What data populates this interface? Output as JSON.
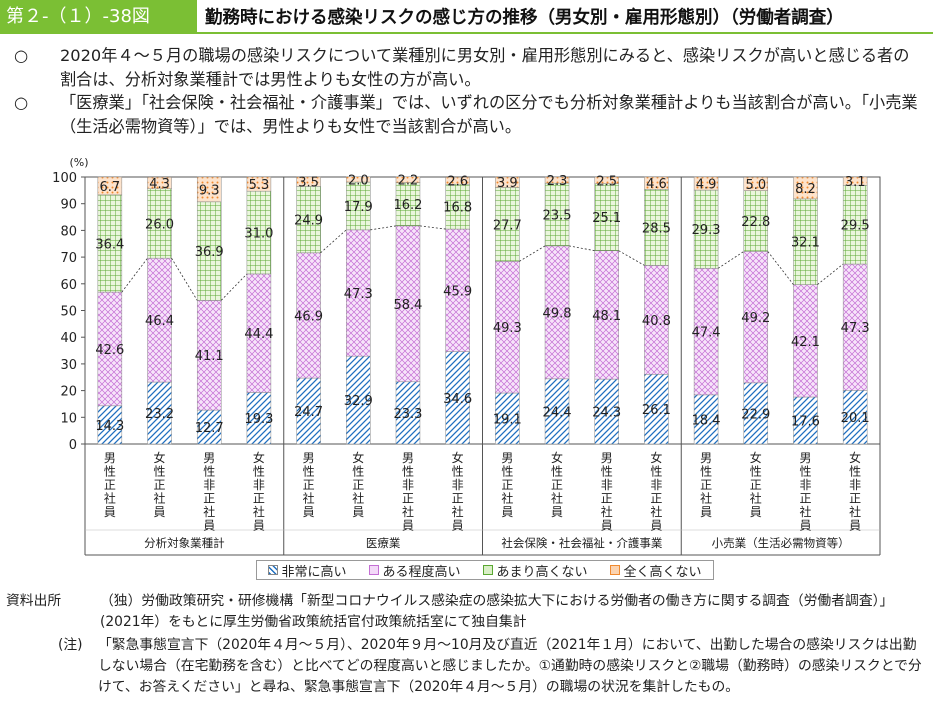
{
  "header": {
    "figure_label": "第２-（１）-38図",
    "title": "勤務時における感染リスクの感じ方の推移（男女別・雇用形態別）（労働者調査）"
  },
  "bullets": [
    {
      "mark": "○",
      "text": "2020年４～５月の職場の感染リスクについて業種別に男女別・雇用形態別にみると、感染リスクが高いと感じる者の割合は、分析対象業種計では男性よりも女性の方が高い。"
    },
    {
      "mark": "○",
      "text": "「医療業」「社会保険・社会福祉・介護事業」では、いずれの区分でも分析対象業種計よりも当該割合が高い。「小売業（生活必需物資等）」では、男性よりも女性で当該割合が高い。"
    }
  ],
  "chart_data": {
    "type": "bar",
    "stacked": true,
    "unit_label": "(%)",
    "ylim": [
      0,
      100
    ],
    "yticks": [
      0,
      10,
      20,
      30,
      40,
      50,
      60,
      70,
      80,
      90,
      100
    ],
    "groups": [
      {
        "name": "分析対象業種計",
        "categories": [
          "男性正社員",
          "女性正社員",
          "男性非正社員",
          "女性非正社員"
        ]
      },
      {
        "name": "医療業",
        "categories": [
          "男性正社員",
          "女性正社員",
          "男性非正社員",
          "女性非正社員"
        ]
      },
      {
        "name": "社会保険・社会福祉・介護事業",
        "categories": [
          "男性正社員",
          "女性正社員",
          "男性非正社員",
          "女性非正社員"
        ]
      },
      {
        "name": "小売業（生活必需物資等）",
        "categories": [
          "男性正社員",
          "女性正社員",
          "男性非正社員",
          "女性非正社員"
        ]
      }
    ],
    "category_labels": [
      "男性正社員",
      "女性正社員",
      "男性非正社員",
      "女性非正社員"
    ],
    "series": [
      {
        "name": "非常に高い",
        "color": "#1f6fc0",
        "values": [
          14.3,
          23.2,
          12.7,
          19.3,
          24.7,
          32.9,
          23.3,
          34.6,
          19.1,
          24.4,
          24.3,
          26.1,
          18.4,
          22.9,
          17.6,
          20.1
        ]
      },
      {
        "name": "ある程度高い",
        "color": "#b04fc4",
        "values": [
          42.6,
          46.4,
          41.1,
          44.4,
          46.9,
          47.3,
          58.4,
          45.9,
          49.3,
          49.8,
          48.1,
          40.8,
          47.4,
          49.2,
          42.1,
          47.3
        ]
      },
      {
        "name": "あまり高くない",
        "color": "#5aa832",
        "values": [
          36.4,
          26.0,
          36.9,
          31.0,
          24.9,
          17.9,
          16.2,
          16.8,
          27.7,
          23.5,
          25.1,
          28.5,
          29.3,
          22.8,
          32.1,
          29.5
        ]
      },
      {
        "name": "全く高くない",
        "color": "#f08a30",
        "values": [
          6.7,
          4.3,
          9.3,
          5.3,
          3.5,
          2.0,
          2.2,
          2.6,
          3.9,
          2.3,
          2.5,
          4.6,
          4.9,
          5.0,
          8.2,
          3.1
        ]
      }
    ],
    "legend_position": "bottom",
    "grid": false
  },
  "source": {
    "label": "資料出所",
    "text": "（独）労働政策研究・研修機構「新型コロナウイルス感染症の感染拡大下における労働者の働き方に関する調査（労働者調査）」(2021年）をもとに厚生労働省政策統括官付政策統括室にて独自集計"
  },
  "note": {
    "label": "(注)",
    "text": "「緊急事態宣言下（2020年４月～５月）、2020年９月～10月及び直近（2021年１月）において、出勤した場合の感染リスクは出勤しない場合（在宅勤務を含む）と比べてどの程度高いと感じましたか。①通勤時の感染リスクと②職場（勤務時）の感染リスクとで分けて、お答えください」と尋ね、緊急事態宣言下（2020年４月～５月）の職場の状況を集計したもの。"
  }
}
